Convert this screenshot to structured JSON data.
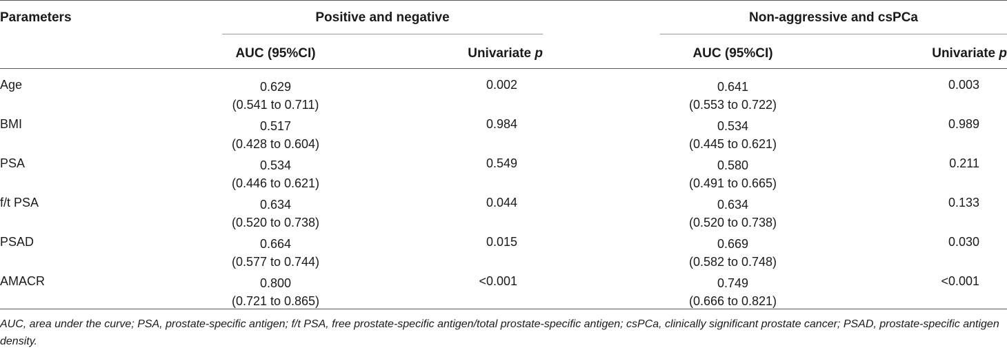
{
  "header": {
    "parameters": "Parameters",
    "group_a": "Positive and negative",
    "group_b": "Non-aggressive and csPCa",
    "auc_label": "AUC (95%CI)",
    "univariate_label": "Univariate ",
    "p_label": "p"
  },
  "rows": [
    {
      "name": "Age",
      "auc_a": "0.629",
      "ci_a": "(0.541 to 0.711)",
      "p_a": "0.002",
      "auc_b": "0.641",
      "ci_b": "(0.553 to 0.722)",
      "p_b": "0.003"
    },
    {
      "name": "BMI",
      "auc_a": "0.517",
      "ci_a": "(0.428 to 0.604)",
      "p_a": "0.984",
      "auc_b": "0.534",
      "ci_b": "(0.445 to 0.621)",
      "p_b": "0.989"
    },
    {
      "name": "PSA",
      "auc_a": "0.534",
      "ci_a": "(0.446 to 0.621)",
      "p_a": "0.549",
      "auc_b": "0.580",
      "ci_b": "(0.491 to 0.665)",
      "p_b": "0.211"
    },
    {
      "name": "f/t PSA",
      "auc_a": "0.634",
      "ci_a": "(0.520 to 0.738)",
      "p_a": "0.044",
      "auc_b": "0.634",
      "ci_b": "(0.520 to 0.738)",
      "p_b": "0.133"
    },
    {
      "name": "PSAD",
      "auc_a": "0.664",
      "ci_a": "(0.577 to 0.744)",
      "p_a": "0.015",
      "auc_b": "0.669",
      "ci_b": "(0.582 to 0.748)",
      "p_b": "0.030"
    },
    {
      "name": "AMACR",
      "auc_a": "0.800",
      "ci_a": "(0.721 to 0.865)",
      "p_a": "<0.001",
      "auc_b": "0.749",
      "ci_b": "(0.666 to 0.821)",
      "p_b": "<0.001"
    }
  ],
  "footnote": "AUC, area under the curve; PSA, prostate-specific antigen; f/t PSA, free prostate-specific antigen/total prostate-specific antigen; csPCa, clinically significant prostate cancer; PSAD, prostate-specific antigen density."
}
